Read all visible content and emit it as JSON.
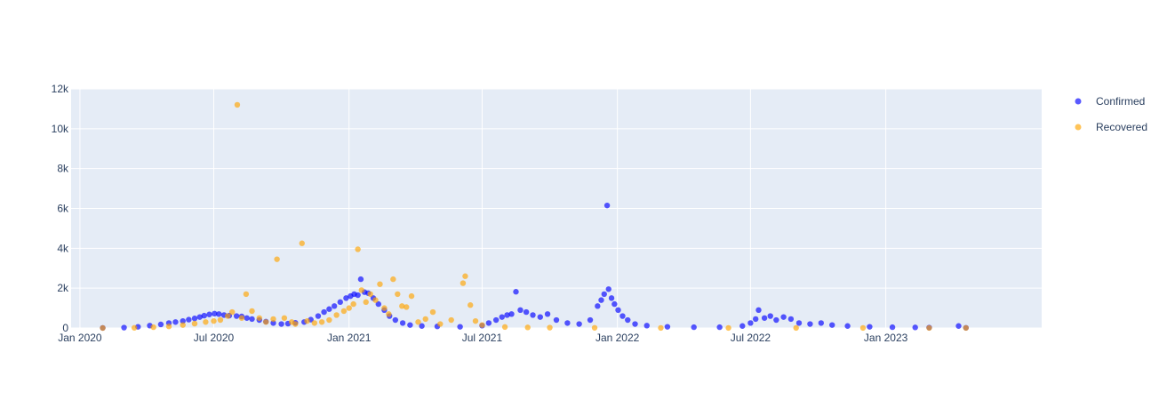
{
  "chart_data": {
    "type": "scatter",
    "title": "",
    "xlabel": "",
    "ylabel": "",
    "x_range": [
      "2019-12-20",
      "2023-08-01"
    ],
    "ylim": [
      0,
      12000
    ],
    "grid": true,
    "legend_position": "top-right",
    "x_ticks": [
      {
        "date": "2020-01-01",
        "label": "Jan 2020"
      },
      {
        "date": "2020-07-01",
        "label": "Jul 2020"
      },
      {
        "date": "2021-01-01",
        "label": "Jan 2021"
      },
      {
        "date": "2021-07-01",
        "label": "Jul 2021"
      },
      {
        "date": "2022-01-01",
        "label": "Jan 2022"
      },
      {
        "date": "2022-07-01",
        "label": "Jul 2022"
      },
      {
        "date": "2023-01-01",
        "label": "Jan 2023"
      }
    ],
    "y_ticks": [
      {
        "value": 0,
        "label": "0"
      },
      {
        "value": 2000,
        "label": "2k"
      },
      {
        "value": 4000,
        "label": "4k"
      },
      {
        "value": 6000,
        "label": "6k"
      },
      {
        "value": 8000,
        "label": "8k"
      },
      {
        "value": 10000,
        "label": "10k"
      },
      {
        "value": 12000,
        "label": "12k"
      }
    ],
    "series": [
      {
        "name": "Confirmed",
        "color": "#0000ff",
        "points": [
          [
            "2020-02-01",
            5
          ],
          [
            "2020-03-01",
            20
          ],
          [
            "2020-03-20",
            60
          ],
          [
            "2020-04-05",
            120
          ],
          [
            "2020-04-20",
            180
          ],
          [
            "2020-05-01",
            250
          ],
          [
            "2020-05-10",
            300
          ],
          [
            "2020-05-20",
            350
          ],
          [
            "2020-05-28",
            420
          ],
          [
            "2020-06-05",
            480
          ],
          [
            "2020-06-12",
            550
          ],
          [
            "2020-06-18",
            620
          ],
          [
            "2020-06-25",
            680
          ],
          [
            "2020-07-02",
            720
          ],
          [
            "2020-07-08",
            700
          ],
          [
            "2020-07-15",
            650
          ],
          [
            "2020-07-22",
            620
          ],
          [
            "2020-08-01",
            600
          ],
          [
            "2020-08-08",
            580
          ],
          [
            "2020-08-15",
            500
          ],
          [
            "2020-08-22",
            450
          ],
          [
            "2020-09-01",
            400
          ],
          [
            "2020-09-10",
            320
          ],
          [
            "2020-09-20",
            250
          ],
          [
            "2020-10-01",
            200
          ],
          [
            "2020-10-10",
            220
          ],
          [
            "2020-10-20",
            260
          ],
          [
            "2020-11-01",
            300
          ],
          [
            "2020-11-10",
            420
          ],
          [
            "2020-11-20",
            600
          ],
          [
            "2020-11-28",
            800
          ],
          [
            "2020-12-05",
            950
          ],
          [
            "2020-12-12",
            1100
          ],
          [
            "2020-12-20",
            1300
          ],
          [
            "2020-12-28",
            1500
          ],
          [
            "2021-01-03",
            1600
          ],
          [
            "2021-01-08",
            1700
          ],
          [
            "2021-01-13",
            1650
          ],
          [
            "2021-01-17",
            2450
          ],
          [
            "2021-01-22",
            1800
          ],
          [
            "2021-01-27",
            1750
          ],
          [
            "2021-02-03",
            1500
          ],
          [
            "2021-02-10",
            1200
          ],
          [
            "2021-02-18",
            900
          ],
          [
            "2021-02-25",
            600
          ],
          [
            "2021-03-05",
            400
          ],
          [
            "2021-03-15",
            250
          ],
          [
            "2021-03-25",
            150
          ],
          [
            "2021-04-10",
            100
          ],
          [
            "2021-05-01",
            80
          ],
          [
            "2021-06-01",
            60
          ],
          [
            "2021-07-01",
            120
          ],
          [
            "2021-07-10",
            250
          ],
          [
            "2021-07-20",
            400
          ],
          [
            "2021-07-28",
            550
          ],
          [
            "2021-08-04",
            650
          ],
          [
            "2021-08-10",
            700
          ],
          [
            "2021-08-16",
            1820
          ],
          [
            "2021-08-22",
            900
          ],
          [
            "2021-08-30",
            800
          ],
          [
            "2021-09-08",
            650
          ],
          [
            "2021-09-18",
            550
          ],
          [
            "2021-09-28",
            700
          ],
          [
            "2021-10-10",
            400
          ],
          [
            "2021-10-25",
            250
          ],
          [
            "2021-11-10",
            200
          ],
          [
            "2021-11-25",
            400
          ],
          [
            "2021-12-05",
            1100
          ],
          [
            "2021-12-10",
            1400
          ],
          [
            "2021-12-14",
            1700
          ],
          [
            "2021-12-18",
            6150
          ],
          [
            "2021-12-20",
            1950
          ],
          [
            "2021-12-24",
            1500
          ],
          [
            "2021-12-28",
            1200
          ],
          [
            "2022-01-02",
            900
          ],
          [
            "2022-01-08",
            600
          ],
          [
            "2022-01-15",
            400
          ],
          [
            "2022-01-25",
            200
          ],
          [
            "2022-02-10",
            120
          ],
          [
            "2022-03-10",
            60
          ],
          [
            "2022-04-15",
            40
          ],
          [
            "2022-05-20",
            40
          ],
          [
            "2022-06-20",
            100
          ],
          [
            "2022-07-01",
            250
          ],
          [
            "2022-07-08",
            450
          ],
          [
            "2022-07-12",
            900
          ],
          [
            "2022-07-20",
            500
          ],
          [
            "2022-07-28",
            600
          ],
          [
            "2022-08-05",
            400
          ],
          [
            "2022-08-15",
            550
          ],
          [
            "2022-08-25",
            450
          ],
          [
            "2022-09-05",
            250
          ],
          [
            "2022-09-20",
            200
          ],
          [
            "2022-10-05",
            250
          ],
          [
            "2022-10-20",
            150
          ],
          [
            "2022-11-10",
            100
          ],
          [
            "2022-12-10",
            60
          ],
          [
            "2023-01-10",
            40
          ],
          [
            "2023-02-10",
            30
          ],
          [
            "2023-03-01",
            20
          ],
          [
            "2023-04-10",
            100
          ],
          [
            "2023-04-20",
            10
          ]
        ]
      },
      {
        "name": "Recovered",
        "color": "#ffa500",
        "points": [
          [
            "2020-02-01",
            0
          ],
          [
            "2020-03-15",
            10
          ],
          [
            "2020-04-10",
            40
          ],
          [
            "2020-05-01",
            80
          ],
          [
            "2020-05-20",
            150
          ],
          [
            "2020-06-05",
            220
          ],
          [
            "2020-06-20",
            300
          ],
          [
            "2020-07-01",
            350
          ],
          [
            "2020-07-10",
            400
          ],
          [
            "2020-07-20",
            600
          ],
          [
            "2020-07-26",
            800
          ],
          [
            "2020-08-02",
            11200
          ],
          [
            "2020-08-08",
            500
          ],
          [
            "2020-08-14",
            1700
          ],
          [
            "2020-08-22",
            850
          ],
          [
            "2020-09-01",
            500
          ],
          [
            "2020-09-10",
            300
          ],
          [
            "2020-09-20",
            450
          ],
          [
            "2020-09-25",
            3450
          ],
          [
            "2020-10-05",
            500
          ],
          [
            "2020-10-15",
            300
          ],
          [
            "2020-10-20",
            200
          ],
          [
            "2020-10-29",
            4250
          ],
          [
            "2020-11-05",
            350
          ],
          [
            "2020-11-15",
            250
          ],
          [
            "2020-11-25",
            300
          ],
          [
            "2020-12-05",
            400
          ],
          [
            "2020-12-15",
            650
          ],
          [
            "2020-12-25",
            850
          ],
          [
            "2021-01-01",
            1000
          ],
          [
            "2021-01-07",
            1200
          ],
          [
            "2021-01-13",
            3950
          ],
          [
            "2021-01-18",
            1900
          ],
          [
            "2021-01-24",
            1300
          ],
          [
            "2021-01-30",
            1700
          ],
          [
            "2021-02-06",
            1400
          ],
          [
            "2021-02-12",
            2200
          ],
          [
            "2021-02-18",
            1000
          ],
          [
            "2021-02-24",
            700
          ],
          [
            "2021-03-02",
            2450
          ],
          [
            "2021-03-08",
            1700
          ],
          [
            "2021-03-14",
            1100
          ],
          [
            "2021-03-20",
            1050
          ],
          [
            "2021-03-27",
            1600
          ],
          [
            "2021-04-05",
            300
          ],
          [
            "2021-04-15",
            450
          ],
          [
            "2021-04-25",
            800
          ],
          [
            "2021-05-05",
            200
          ],
          [
            "2021-05-20",
            400
          ],
          [
            "2021-06-05",
            2250
          ],
          [
            "2021-06-08",
            2600
          ],
          [
            "2021-06-15",
            1150
          ],
          [
            "2021-06-22",
            350
          ],
          [
            "2021-07-01",
            150
          ],
          [
            "2021-08-01",
            50
          ],
          [
            "2021-09-01",
            30
          ],
          [
            "2021-10-01",
            20
          ],
          [
            "2021-12-01",
            10
          ],
          [
            "2022-03-01",
            5
          ],
          [
            "2022-06-01",
            5
          ],
          [
            "2022-09-01",
            5
          ],
          [
            "2022-12-01",
            5
          ],
          [
            "2023-03-01",
            5
          ],
          [
            "2023-04-20",
            5
          ]
        ]
      }
    ]
  }
}
